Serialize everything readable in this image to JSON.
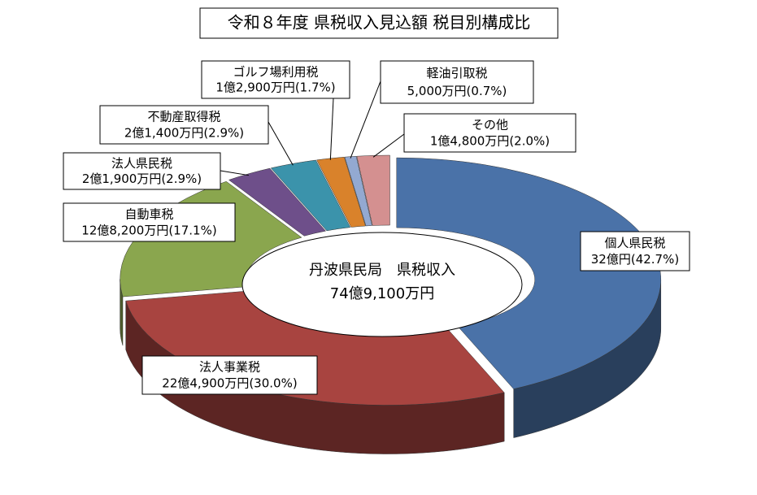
{
  "chart_data": {
    "type": "pie",
    "donut": true,
    "title": "令和８年度 県税収入見込額 税目別構成比",
    "annotation": [
      "丹波県民局　県税収入",
      "74億9,100万円"
    ],
    "categories": [
      "個人県民税",
      "法人事業税",
      "自動車税",
      "法人県民税",
      "不動産取得税",
      "ゴルフ場利用税",
      "軽油引取税",
      "その他"
    ],
    "values": [
      42.7,
      30.0,
      17.1,
      2.9,
      2.9,
      1.7,
      0.7,
      2.0
    ],
    "value_labels": [
      "32億円(42.7%)",
      "22億4,900万円(30.0%)",
      "12億8,200万円(17.1%)",
      "2億1,900万円(2.9%)",
      "2億1,400万円(2.9%)",
      "1億2,900万円(1.7%)",
      "5,000万円(0.7%)",
      "1億4,800万円(2.0%)"
    ],
    "colors": [
      "#4a72a8",
      "#a84440",
      "#8aa64e",
      "#6e4f8a",
      "#3b93ab",
      "#d9822b",
      "#93a9d1",
      "#d49090"
    ]
  }
}
